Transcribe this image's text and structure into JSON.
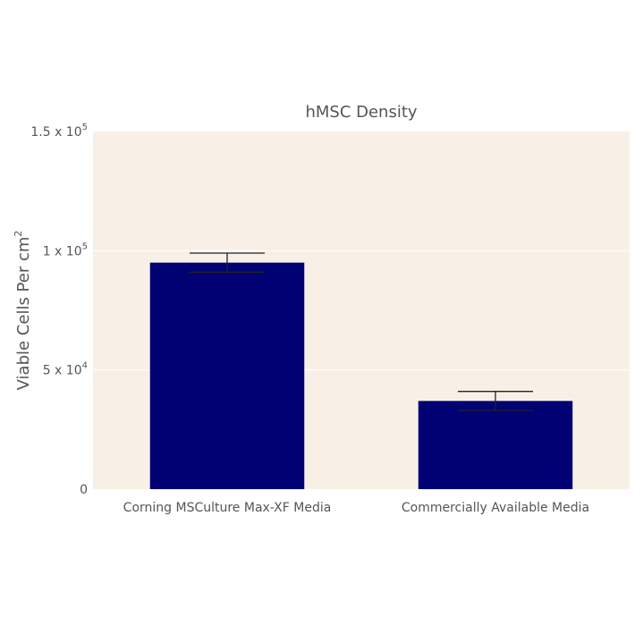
{
  "chart_data": {
    "type": "bar",
    "title": "hMSC Density",
    "xlabel": "",
    "ylabel": "Viable Cells Per cm",
    "ylabel_sup": "2",
    "categories": [
      "Corning MSCulture Max-XF Media",
      "Commercially Available Media"
    ],
    "values": [
      95000,
      37000
    ],
    "error_plus": [
      4000,
      4000
    ],
    "error_minus": [
      4000,
      4000
    ],
    "ylim": [
      0,
      150000
    ],
    "y_ticks": [
      {
        "value": 0,
        "base": "0",
        "exp": ""
      },
      {
        "value": 50000,
        "base": "5 x 10",
        "exp": "4"
      },
      {
        "value": 100000,
        "base": "1 x 10",
        "exp": "5"
      },
      {
        "value": 150000,
        "base": "1.5 x 10",
        "exp": "5"
      }
    ],
    "grid": true,
    "legend": "none",
    "colors": {
      "bar": "#010174",
      "plot_background": "#f8f0e6",
      "gridline": "#ffffff",
      "errorbar": "#222222",
      "text": "#555555"
    }
  }
}
